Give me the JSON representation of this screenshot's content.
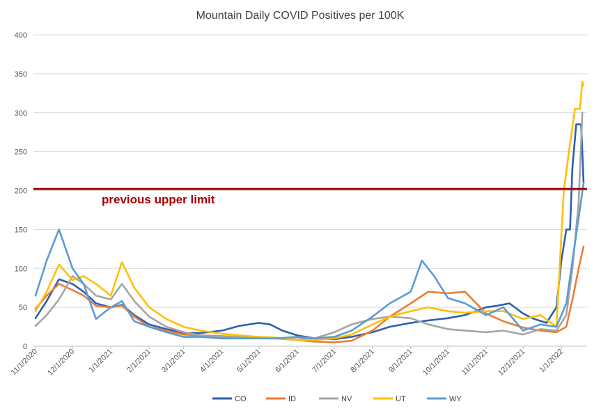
{
  "chart_data": {
    "type": "line",
    "title": "Mountain Daily COVID Positives per 100K",
    "xlabel": "",
    "ylabel": "",
    "ylim": [
      0,
      400
    ],
    "yticks": [
      0,
      50,
      100,
      150,
      200,
      250,
      300,
      350,
      400
    ],
    "x_tick_labels": [
      "11/1/2020",
      "12/1/2020",
      "1/1/2021",
      "2/1/2021",
      "3/1/2021",
      "4/1/2021",
      "5/1/2021",
      "6/1/2021",
      "7/1/2021",
      "8/1/2021",
      "9/1/2021",
      "10/1/2021",
      "11/1/2021",
      "12/1/2021",
      "1/1/2022"
    ],
    "grid": true,
    "legend_position": "bottom",
    "annotation": {
      "text": "previous upper limit",
      "y": 202,
      "color": "#a50000"
    },
    "series": [
      {
        "name": "CO",
        "color": "#2e5fae",
        "points": [
          [
            "2020-11-01",
            36
          ],
          [
            "2020-11-10",
            58
          ],
          [
            "2020-11-20",
            86
          ],
          [
            "2020-12-01",
            80
          ],
          [
            "2020-12-10",
            70
          ],
          [
            "2020-12-20",
            55
          ],
          [
            "2021-01-01",
            50
          ],
          [
            "2021-01-10",
            53
          ],
          [
            "2021-01-20",
            40
          ],
          [
            "2021-02-01",
            28
          ],
          [
            "2021-02-15",
            22
          ],
          [
            "2021-03-01",
            17
          ],
          [
            "2021-03-15",
            17
          ],
          [
            "2021-04-01",
            20
          ],
          [
            "2021-04-15",
            26
          ],
          [
            "2021-05-01",
            30
          ],
          [
            "2021-05-10",
            28
          ],
          [
            "2021-05-20",
            20
          ],
          [
            "2021-06-01",
            14
          ],
          [
            "2021-06-15",
            10
          ],
          [
            "2021-07-01",
            9
          ],
          [
            "2021-07-15",
            12
          ],
          [
            "2021-08-01",
            18
          ],
          [
            "2021-08-15",
            25
          ],
          [
            "2021-09-01",
            30
          ],
          [
            "2021-09-15",
            33
          ],
          [
            "2021-10-01",
            36
          ],
          [
            "2021-10-15",
            40
          ],
          [
            "2021-11-01",
            50
          ],
          [
            "2021-11-10",
            52
          ],
          [
            "2021-11-20",
            55
          ],
          [
            "2021-12-01",
            42
          ],
          [
            "2021-12-10",
            35
          ],
          [
            "2021-12-20",
            30
          ],
          [
            "2021-12-28",
            50
          ],
          [
            "2022-01-01",
            110
          ],
          [
            "2022-01-05",
            150
          ],
          [
            "2022-01-08",
            150
          ],
          [
            "2022-01-10",
            230
          ],
          [
            "2022-01-13",
            285
          ],
          [
            "2022-01-17",
            285
          ],
          [
            "2022-01-19",
            210
          ]
        ]
      },
      {
        "name": "ID",
        "color": "#ed7d31",
        "points": [
          [
            "2020-11-01",
            48
          ],
          [
            "2020-11-10",
            65
          ],
          [
            "2020-11-20",
            80
          ],
          [
            "2020-12-01",
            72
          ],
          [
            "2020-12-10",
            65
          ],
          [
            "2020-12-20",
            52
          ],
          [
            "2021-01-01",
            50
          ],
          [
            "2021-01-10",
            52
          ],
          [
            "2021-01-20",
            38
          ],
          [
            "2021-02-01",
            25
          ],
          [
            "2021-02-15",
            20
          ],
          [
            "2021-03-01",
            15
          ],
          [
            "2021-03-15",
            14
          ],
          [
            "2021-04-01",
            13
          ],
          [
            "2021-04-15",
            12
          ],
          [
            "2021-05-01",
            11
          ],
          [
            "2021-05-15",
            10
          ],
          [
            "2021-06-01",
            8
          ],
          [
            "2021-06-15",
            6
          ],
          [
            "2021-07-01",
            5
          ],
          [
            "2021-07-15",
            7
          ],
          [
            "2021-08-01",
            20
          ],
          [
            "2021-08-15",
            38
          ],
          [
            "2021-09-01",
            55
          ],
          [
            "2021-09-15",
            70
          ],
          [
            "2021-10-01",
            68
          ],
          [
            "2021-10-15",
            70
          ],
          [
            "2021-11-01",
            42
          ],
          [
            "2021-11-15",
            32
          ],
          [
            "2021-12-01",
            24
          ],
          [
            "2021-12-15",
            20
          ],
          [
            "2021-12-28",
            18
          ],
          [
            "2022-01-05",
            25
          ],
          [
            "2022-01-10",
            60
          ],
          [
            "2022-01-15",
            100
          ],
          [
            "2022-01-19",
            128
          ]
        ]
      },
      {
        "name": "NV",
        "color": "#a5a5a5",
        "points": [
          [
            "2020-11-01",
            26
          ],
          [
            "2020-11-10",
            40
          ],
          [
            "2020-11-20",
            60
          ],
          [
            "2020-12-01",
            90
          ],
          [
            "2020-12-10",
            80
          ],
          [
            "2020-12-20",
            65
          ],
          [
            "2021-01-01",
            60
          ],
          [
            "2021-01-10",
            80
          ],
          [
            "2021-01-20",
            58
          ],
          [
            "2021-02-01",
            38
          ],
          [
            "2021-02-15",
            25
          ],
          [
            "2021-03-01",
            18
          ],
          [
            "2021-03-15",
            14
          ],
          [
            "2021-04-01",
            12
          ],
          [
            "2021-04-15",
            12
          ],
          [
            "2021-05-01",
            11
          ],
          [
            "2021-05-15",
            10
          ],
          [
            "2021-06-01",
            9
          ],
          [
            "2021-06-15",
            10
          ],
          [
            "2021-07-01",
            18
          ],
          [
            "2021-07-15",
            28
          ],
          [
            "2021-08-01",
            35
          ],
          [
            "2021-08-15",
            38
          ],
          [
            "2021-09-01",
            36
          ],
          [
            "2021-09-15",
            28
          ],
          [
            "2021-10-01",
            22
          ],
          [
            "2021-10-15",
            20
          ],
          [
            "2021-11-01",
            18
          ],
          [
            "2021-11-15",
            20
          ],
          [
            "2021-12-01",
            15
          ],
          [
            "2021-12-15",
            22
          ],
          [
            "2021-12-28",
            20
          ],
          [
            "2022-01-05",
            40
          ],
          [
            "2022-01-10",
            100
          ],
          [
            "2022-01-15",
            185
          ],
          [
            "2022-01-18",
            300
          ]
        ]
      },
      {
        "name": "UT",
        "color": "#ffc000",
        "points": [
          [
            "2020-11-01",
            45
          ],
          [
            "2020-11-10",
            70
          ],
          [
            "2020-11-20",
            105
          ],
          [
            "2020-12-01",
            85
          ],
          [
            "2020-12-10",
            90
          ],
          [
            "2020-12-20",
            80
          ],
          [
            "2021-01-01",
            65
          ],
          [
            "2021-01-10",
            108
          ],
          [
            "2021-01-20",
            75
          ],
          [
            "2021-02-01",
            50
          ],
          [
            "2021-02-15",
            35
          ],
          [
            "2021-03-01",
            25
          ],
          [
            "2021-03-15",
            20
          ],
          [
            "2021-04-01",
            16
          ],
          [
            "2021-04-15",
            14
          ],
          [
            "2021-05-01",
            12
          ],
          [
            "2021-05-15",
            11
          ],
          [
            "2021-06-01",
            8
          ],
          [
            "2021-06-15",
            8
          ],
          [
            "2021-07-01",
            10
          ],
          [
            "2021-07-15",
            15
          ],
          [
            "2021-08-01",
            28
          ],
          [
            "2021-08-15",
            38
          ],
          [
            "2021-09-01",
            45
          ],
          [
            "2021-09-15",
            50
          ],
          [
            "2021-10-01",
            45
          ],
          [
            "2021-10-15",
            43
          ],
          [
            "2021-11-01",
            45
          ],
          [
            "2021-11-15",
            45
          ],
          [
            "2021-12-01",
            35
          ],
          [
            "2021-12-15",
            40
          ],
          [
            "2021-12-28",
            25
          ],
          [
            "2022-01-03",
            200
          ],
          [
            "2022-01-08",
            260
          ],
          [
            "2022-01-12",
            305
          ],
          [
            "2022-01-16",
            305
          ],
          [
            "2022-01-18",
            340
          ],
          [
            "2022-01-19",
            335
          ]
        ]
      },
      {
        "name": "WY",
        "color": "#5b9bd5",
        "points": [
          [
            "2020-11-01",
            65
          ],
          [
            "2020-11-10",
            110
          ],
          [
            "2020-11-20",
            150
          ],
          [
            "2020-12-01",
            100
          ],
          [
            "2020-12-10",
            80
          ],
          [
            "2020-12-20",
            35
          ],
          [
            "2021-01-01",
            50
          ],
          [
            "2021-01-10",
            58
          ],
          [
            "2021-01-20",
            32
          ],
          [
            "2021-02-01",
            25
          ],
          [
            "2021-02-15",
            18
          ],
          [
            "2021-03-01",
            12
          ],
          [
            "2021-03-15",
            12
          ],
          [
            "2021-04-01",
            10
          ],
          [
            "2021-04-15",
            10
          ],
          [
            "2021-05-01",
            10
          ],
          [
            "2021-05-15",
            10
          ],
          [
            "2021-06-01",
            12
          ],
          [
            "2021-06-15",
            10
          ],
          [
            "2021-07-01",
            12
          ],
          [
            "2021-07-15",
            20
          ],
          [
            "2021-08-01",
            38
          ],
          [
            "2021-08-15",
            55
          ],
          [
            "2021-09-01",
            70
          ],
          [
            "2021-09-10",
            110
          ],
          [
            "2021-09-20",
            90
          ],
          [
            "2021-10-01",
            62
          ],
          [
            "2021-10-15",
            55
          ],
          [
            "2021-11-01",
            40
          ],
          [
            "2021-11-15",
            50
          ],
          [
            "2021-12-01",
            20
          ],
          [
            "2021-12-15",
            28
          ],
          [
            "2021-12-28",
            25
          ],
          [
            "2022-01-05",
            55
          ],
          [
            "2022-01-10",
            110
          ],
          [
            "2022-01-15",
            165
          ],
          [
            "2022-01-19",
            210
          ]
        ]
      }
    ]
  }
}
